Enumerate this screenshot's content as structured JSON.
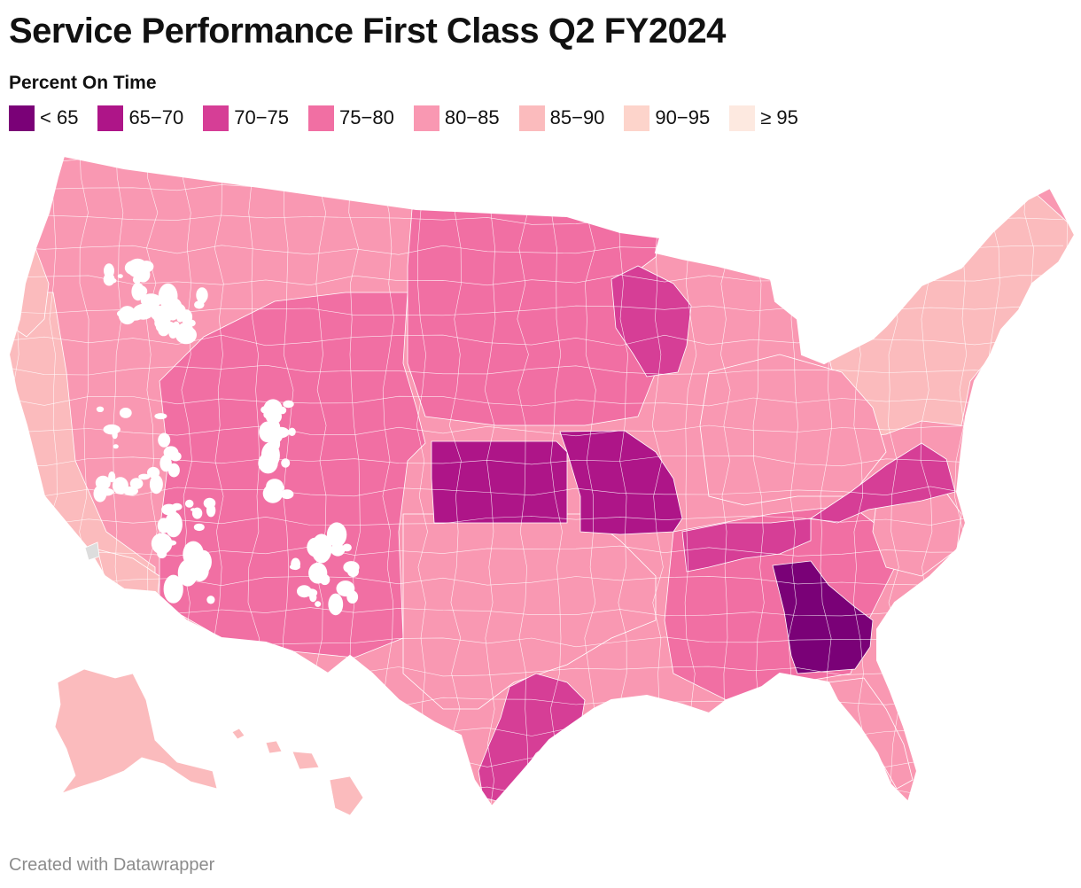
{
  "title": "Service Performance First Class Q2 FY2024",
  "legend": {
    "title": "Percent On Time",
    "items": [
      {
        "label": "< 65",
        "color": "#7a0177"
      },
      {
        "label": "65−70",
        "color": "#ae1588"
      },
      {
        "label": "70−75",
        "color": "#d63e96"
      },
      {
        "label": "75−80",
        "color": "#f16fa3"
      },
      {
        "label": "80−85",
        "color": "#f998b2"
      },
      {
        "label": "85−90",
        "color": "#fbbbbd"
      },
      {
        "label": "90−95",
        "color": "#fdd4cb"
      },
      {
        "label": "≥ 95",
        "color": "#fde9e0"
      }
    ]
  },
  "colors": {
    "no_data": "#dddddd",
    "border": "#ffffff"
  },
  "footer": "Created with Datawrapper"
}
